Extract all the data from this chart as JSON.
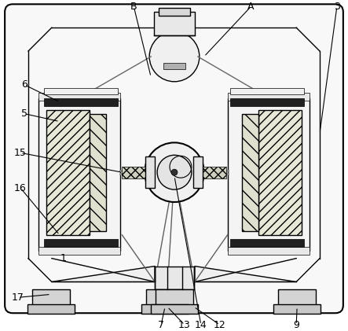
{
  "bg_color": "#ffffff",
  "line_color": "#000000",
  "figsize": [
    4.43,
    4.21
  ],
  "dpi": 100
}
